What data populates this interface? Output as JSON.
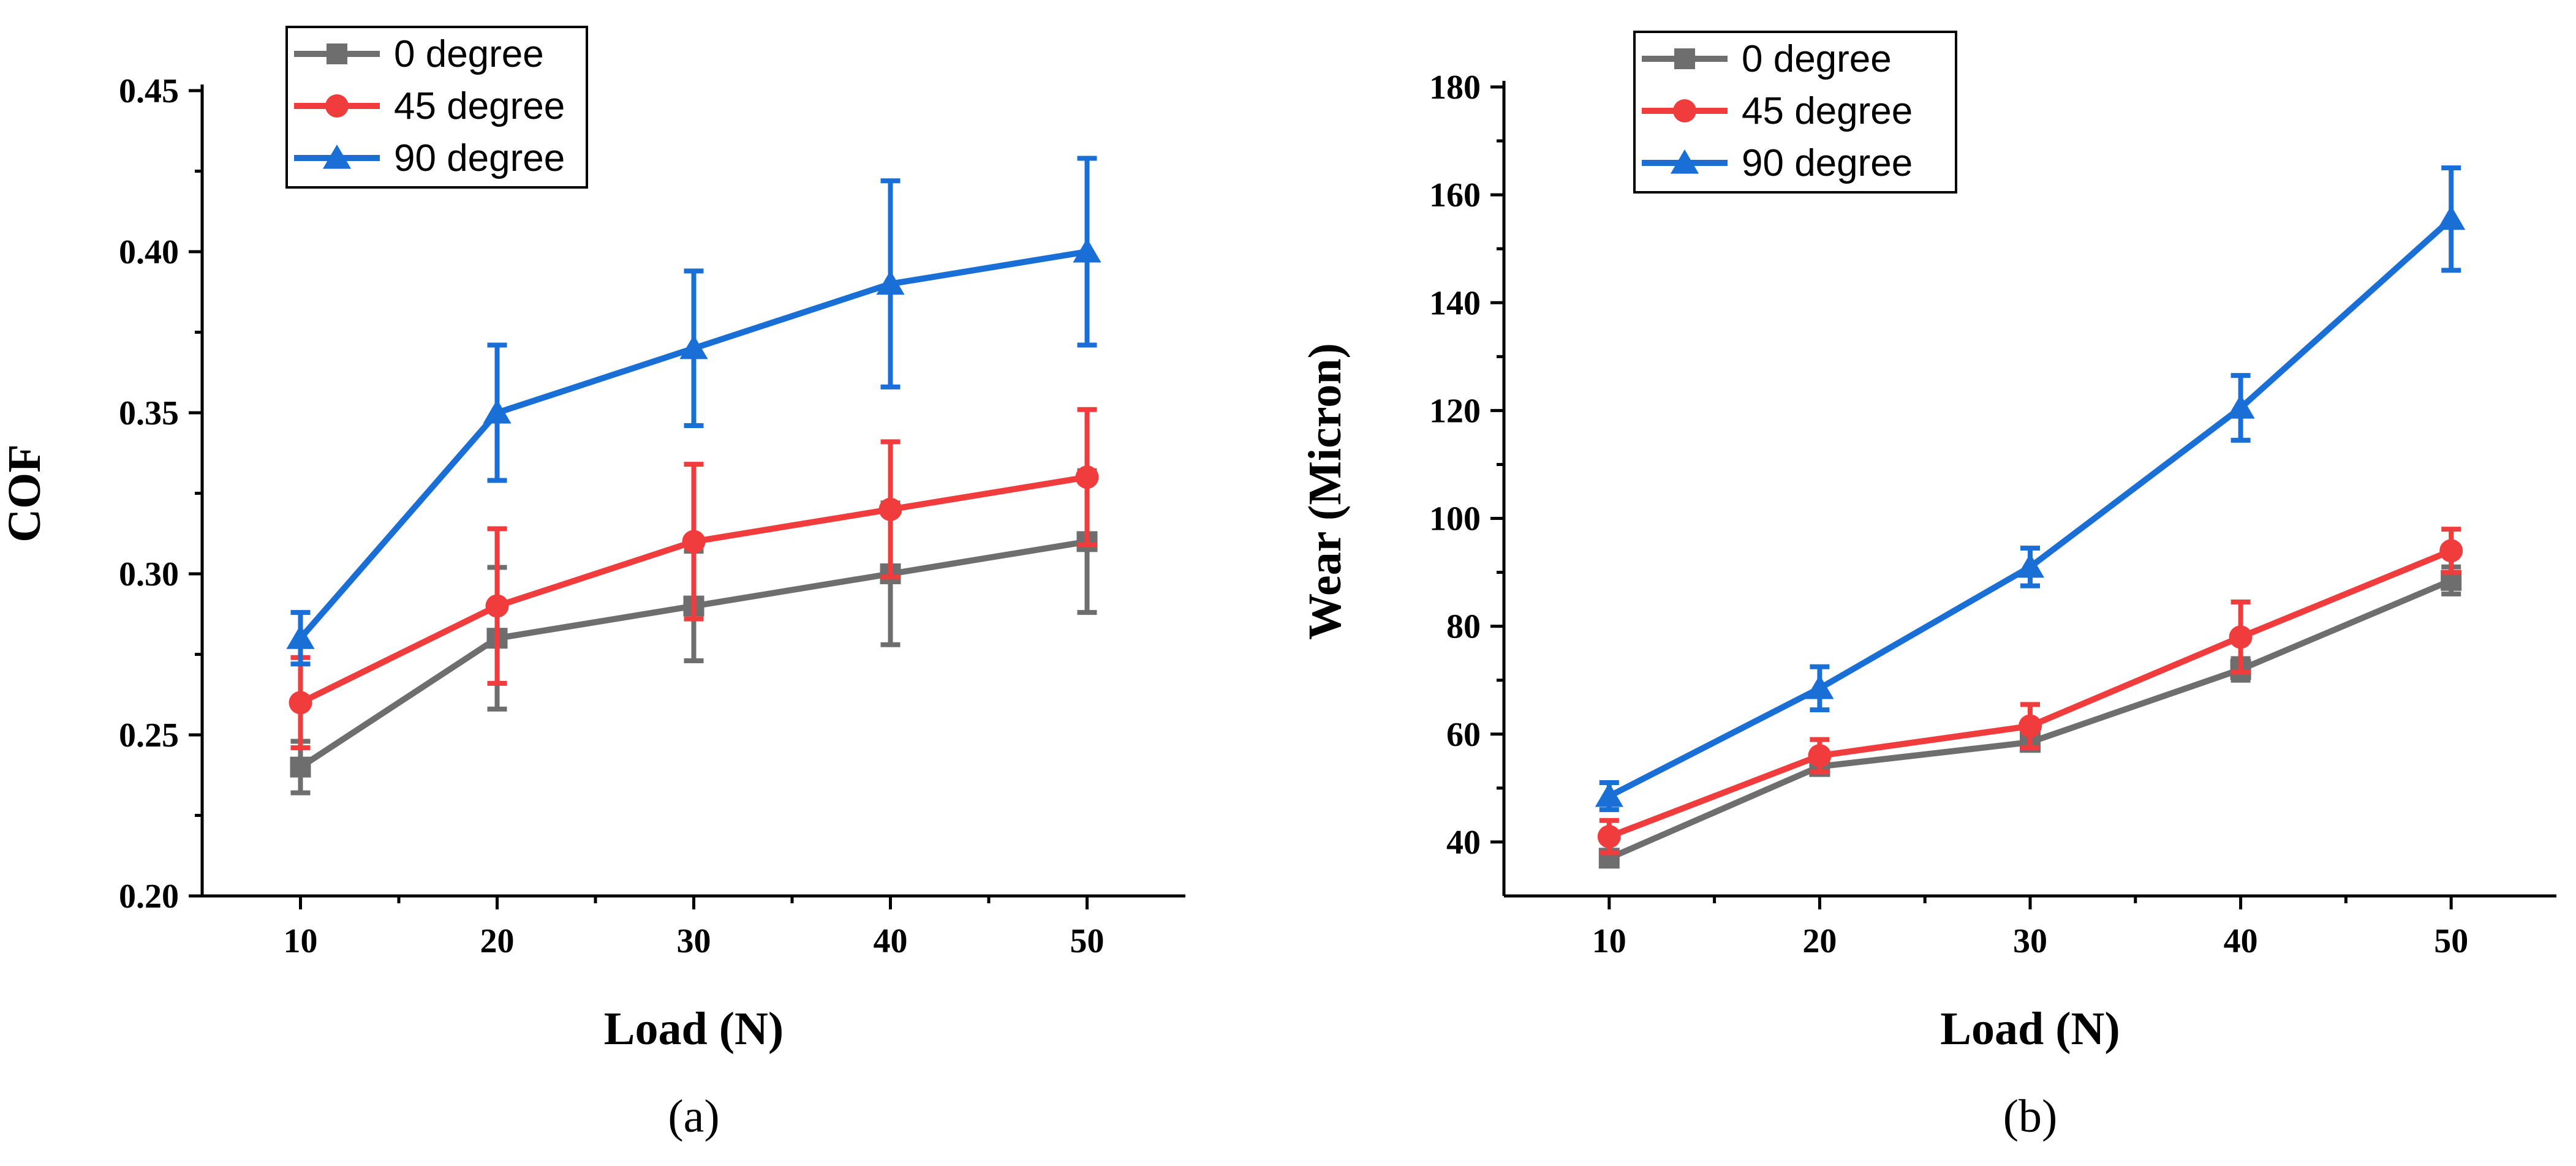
{
  "chart_data": [
    {
      "type": "line",
      "panel_label": "(a)",
      "xlabel": "Load (N)",
      "ylabel": "COF",
      "x": [
        10,
        20,
        30,
        40,
        50
      ],
      "xlim": [
        5,
        55
      ],
      "ylim": [
        0.2,
        0.45
      ],
      "xticks": [
        10,
        20,
        30,
        40,
        50
      ],
      "yticks": [
        0.2,
        0.25,
        0.3,
        0.35,
        0.4,
        0.45
      ],
      "ytick_labels": [
        "0.20",
        "0.25",
        "0.30",
        "0.35",
        "0.40",
        "0.45"
      ],
      "legend_position": "top-left",
      "grid": false,
      "series": [
        {
          "name": "0 degree",
          "color": "#6e6e6e",
          "marker": "square",
          "values": [
            0.24,
            0.28,
            0.29,
            0.3,
            0.31
          ],
          "errors": [
            0.008,
            0.022,
            0.017,
            0.022,
            0.022
          ]
        },
        {
          "name": "45 degree",
          "color": "#f03c3c",
          "marker": "circle",
          "values": [
            0.26,
            0.29,
            0.31,
            0.32,
            0.33
          ],
          "errors": [
            0.014,
            0.024,
            0.024,
            0.021,
            0.021
          ]
        },
        {
          "name": "90 degree",
          "color": "#1a6fd6",
          "marker": "triangle",
          "values": [
            0.28,
            0.35,
            0.37,
            0.39,
            0.4
          ],
          "errors": [
            0.008,
            0.021,
            0.024,
            0.032,
            0.029
          ]
        }
      ]
    },
    {
      "type": "line",
      "panel_label": "(b)",
      "xlabel": "Load (N)",
      "ylabel": "Wear (Micron)",
      "x": [
        10,
        20,
        30,
        40,
        50
      ],
      "xlim": [
        5,
        55
      ],
      "ylim": [
        30,
        180
      ],
      "xticks": [
        10,
        20,
        30,
        40,
        50
      ],
      "yticks": [
        40,
        60,
        80,
        100,
        120,
        140,
        160,
        180
      ],
      "ytick_labels": [
        "40",
        "60",
        "80",
        "100",
        "120",
        "140",
        "160",
        "180"
      ],
      "legend_position": "top-left",
      "grid": false,
      "series": [
        {
          "name": "0 degree",
          "color": "#6e6e6e",
          "marker": "square",
          "values": [
            37,
            54,
            58.5,
            72,
            88.5
          ],
          "errors": [
            1.0,
            1.2,
            1.5,
            2.0,
            2.5
          ]
        },
        {
          "name": "45 degree",
          "color": "#f03c3c",
          "marker": "circle",
          "values": [
            41,
            56,
            61.5,
            78,
            94
          ],
          "errors": [
            3,
            3,
            4,
            6.5,
            4
          ]
        },
        {
          "name": "90 degree",
          "color": "#1a6fd6",
          "marker": "triangle",
          "values": [
            48.5,
            68.5,
            91,
            120.5,
            155.5
          ],
          "errors": [
            2.5,
            4.0,
            3.5,
            6.0,
            9.5
          ]
        }
      ]
    }
  ]
}
